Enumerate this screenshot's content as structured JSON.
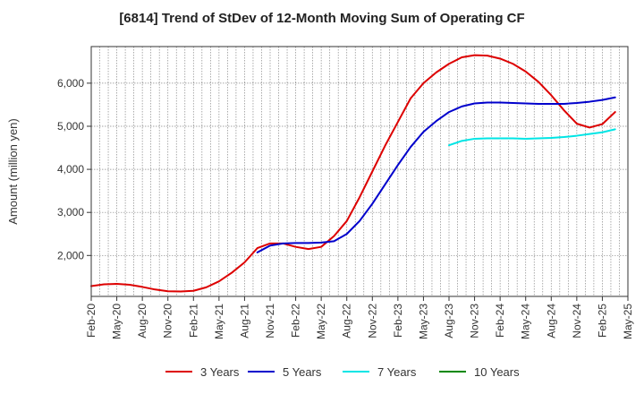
{
  "chart_data": {
    "type": "line",
    "title": "[6814]  Trend of StDev of 12-Month Moving Sum of Operating CF",
    "xlabel": "",
    "ylabel": "Amount (million yen)",
    "x_tick_labels": [
      "Feb-20",
      "May-20",
      "Aug-20",
      "Nov-20",
      "Feb-21",
      "May-21",
      "Aug-21",
      "Nov-21",
      "Feb-22",
      "May-22",
      "Aug-22",
      "Nov-22",
      "Feb-23",
      "May-23",
      "Aug-23",
      "Nov-23",
      "Feb-24",
      "May-24",
      "Aug-24",
      "Nov-24",
      "Feb-25",
      "May-25"
    ],
    "y_ticks": [
      2000,
      3000,
      4000,
      5000,
      6000
    ],
    "y_tick_labels": [
      "2,000",
      "3,000",
      "4,000",
      "5,000",
      "6,000"
    ],
    "ylim": [
      1050,
      6850
    ],
    "grid": true,
    "legend_position": "bottom",
    "series": [
      {
        "name": "3 Years",
        "color": "#dd0000",
        "values": [
          1290,
          1330,
          1340,
          1320,
          1270,
          1210,
          1170,
          1165,
          1180,
          1260,
          1400,
          1600,
          1840,
          2170,
          2280,
          2280,
          2200,
          2150,
          2200,
          2450,
          2800,
          3350,
          3950,
          4550,
          5100,
          5650,
          6000,
          6250,
          6450,
          6600,
          6650,
          6640,
          6570,
          6450,
          6270,
          6030,
          5720,
          5370,
          5060,
          4970,
          5050,
          5330
        ]
      },
      {
        "name": "5 Years",
        "color": "#0000cc",
        "values": [
          null,
          null,
          null,
          null,
          null,
          null,
          null,
          null,
          null,
          null,
          null,
          null,
          null,
          2070,
          2230,
          2280,
          2290,
          2290,
          2300,
          2330,
          2500,
          2800,
          3200,
          3650,
          4100,
          4520,
          4870,
          5120,
          5330,
          5460,
          5530,
          5550,
          5550,
          5540,
          5530,
          5520,
          5520,
          5520,
          5540,
          5570,
          5610,
          5670
        ]
      },
      {
        "name": "7 Years",
        "color": "#00e5e5",
        "values": [
          null,
          null,
          null,
          null,
          null,
          null,
          null,
          null,
          null,
          null,
          null,
          null,
          null,
          null,
          null,
          null,
          null,
          null,
          null,
          null,
          null,
          null,
          null,
          null,
          null,
          null,
          null,
          null,
          4560,
          4660,
          4710,
          4720,
          4720,
          4720,
          4710,
          4720,
          4730,
          4750,
          4780,
          4820,
          4860,
          4930
        ]
      },
      {
        "name": "10 Years",
        "color": "#008800",
        "values": []
      }
    ]
  }
}
